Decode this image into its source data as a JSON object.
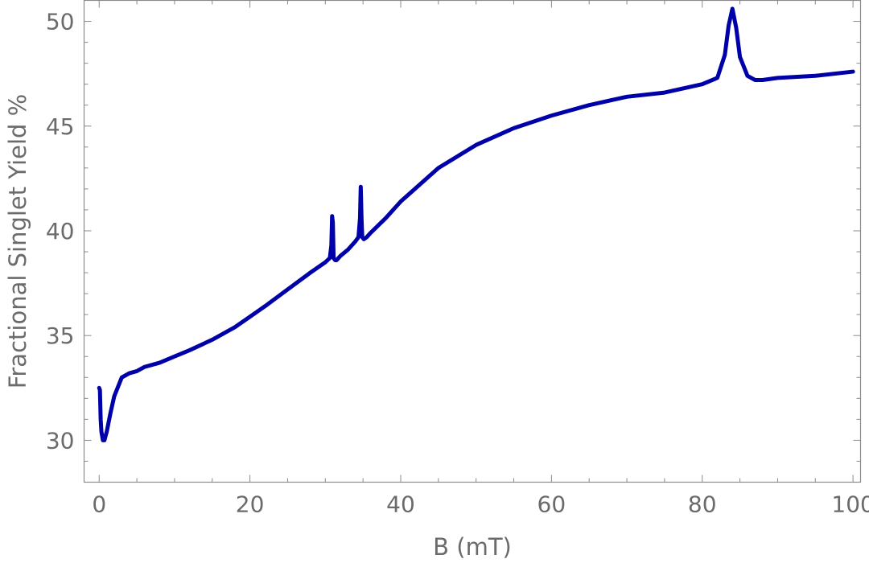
{
  "chart_data": {
    "type": "line",
    "title": "",
    "xlabel": "B (mT)",
    "ylabel": "Fractional Singlet Yield %",
    "xlim": [
      -2,
      101
    ],
    "ylim": [
      28,
      51
    ],
    "xticks": [
      0,
      20,
      40,
      60,
      80,
      100
    ],
    "yticks": [
      30,
      35,
      40,
      45,
      50
    ],
    "grid": false,
    "legend": "none",
    "series": [
      {
        "color": "#0000a8",
        "x": [
          0.0,
          0.1,
          0.2,
          0.3,
          0.5,
          0.7,
          1.0,
          1.5,
          2.0,
          3.0,
          4.0,
          5.0,
          6.0,
          8.0,
          10.0,
          12.0,
          15.0,
          18.0,
          20.0,
          22.0,
          25.0,
          28.0,
          30.0,
          30.6,
          30.8,
          30.9,
          31.0,
          31.1,
          31.3,
          31.5,
          32.0,
          33.0,
          34.0,
          34.4,
          34.6,
          34.7,
          34.8,
          34.9,
          35.1,
          35.5,
          36.0,
          38.0,
          40.0,
          45.0,
          50.0,
          55.0,
          60.0,
          65.0,
          70.0,
          75.0,
          80.0,
          82.0,
          83.0,
          83.5,
          84.0,
          84.5,
          85.0,
          86.0,
          87.0,
          88.0,
          90.0,
          95.0,
          100.0
        ],
        "y": [
          32.5,
          32.4,
          31.0,
          30.4,
          30.0,
          30.0,
          30.4,
          31.3,
          32.1,
          33.0,
          33.2,
          33.3,
          33.5,
          33.7,
          34.0,
          34.3,
          34.8,
          35.4,
          35.9,
          36.4,
          37.2,
          38.0,
          38.5,
          38.7,
          39.3,
          40.7,
          40.4,
          38.7,
          38.6,
          38.6,
          38.8,
          39.1,
          39.5,
          39.7,
          40.6,
          42.1,
          40.6,
          39.7,
          39.6,
          39.7,
          39.9,
          40.6,
          41.4,
          43.0,
          44.1,
          44.9,
          45.5,
          46.0,
          46.4,
          46.6,
          47.0,
          47.3,
          48.4,
          49.8,
          50.6,
          49.7,
          48.3,
          47.4,
          47.2,
          47.2,
          47.3,
          47.4,
          47.6
        ]
      }
    ]
  }
}
